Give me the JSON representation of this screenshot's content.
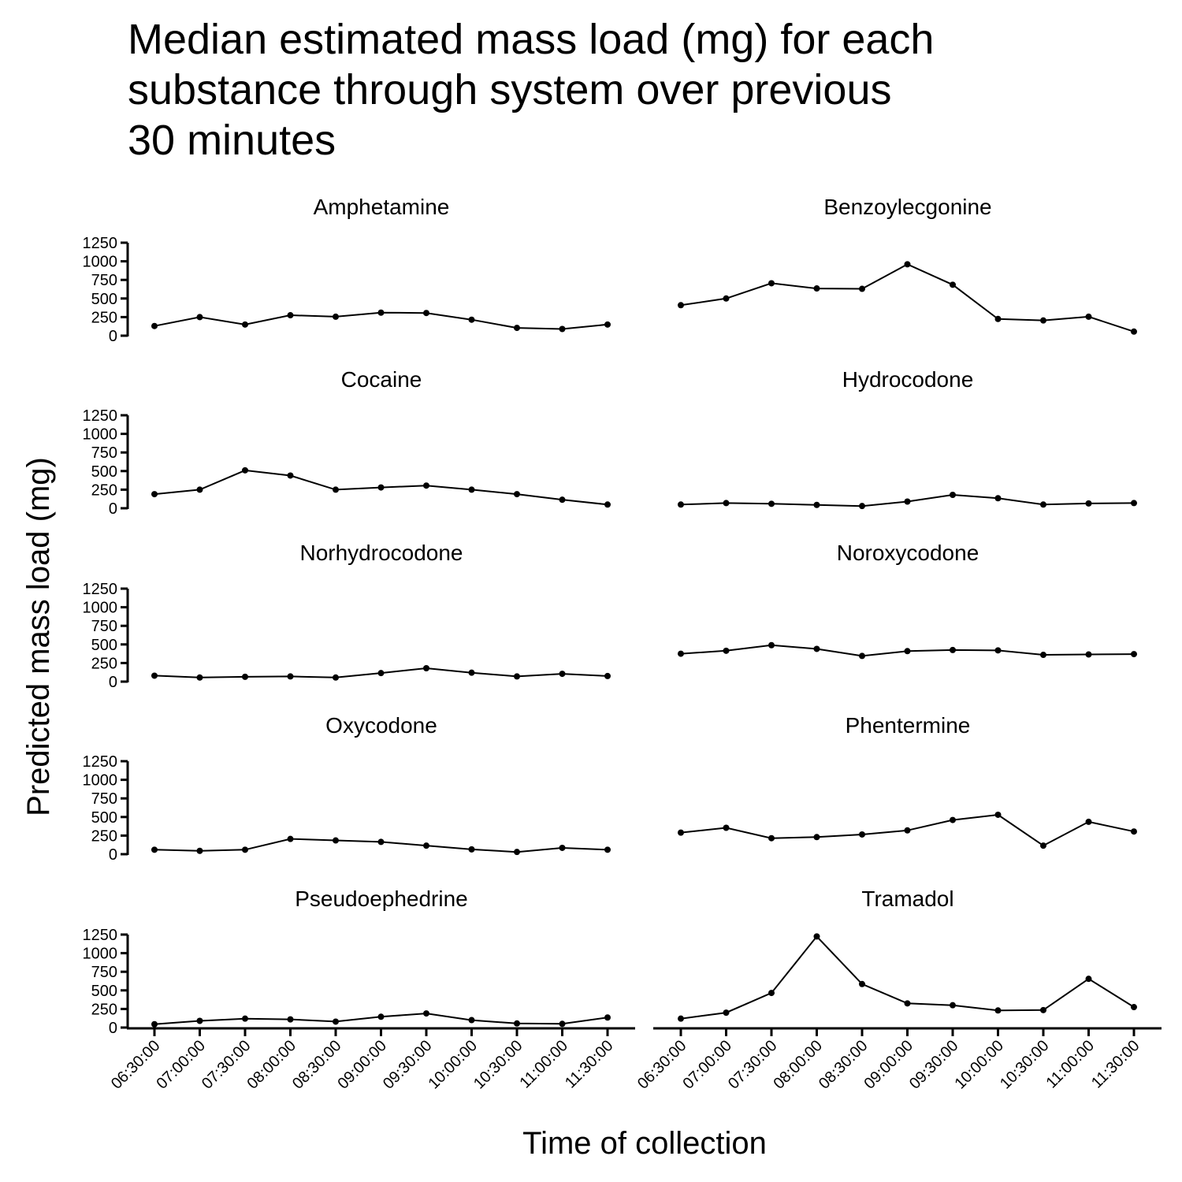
{
  "chart_data": {
    "type": "line",
    "title_lines": [
      "Median estimated mass load (mg) for each",
      "substance through system over previous",
      "30 minutes"
    ],
    "xlabel": "Time of collection",
    "ylabel": "Predicted mass load (mg)",
    "x": [
      "06:30:00",
      "07:00:00",
      "07:30:00",
      "08:00:00",
      "08:30:00",
      "09:00:00",
      "09:30:00",
      "10:00:00",
      "10:30:00",
      "11:00:00",
      "11:30:00"
    ],
    "ylim": [
      0,
      1250
    ],
    "yticks": [
      0,
      250,
      500,
      750,
      1000,
      1250
    ],
    "grid": false,
    "legend": "none",
    "line_color": "#000000",
    "facets": [
      {
        "name": "Amphetamine",
        "values": [
          130,
          250,
          150,
          275,
          255,
          310,
          305,
          215,
          105,
          90,
          150
        ]
      },
      {
        "name": "Benzoylecgonine",
        "values": [
          410,
          500,
          705,
          635,
          630,
          960,
          685,
          225,
          205,
          255,
          55
        ]
      },
      {
        "name": "Cocaine",
        "values": [
          190,
          250,
          510,
          440,
          250,
          280,
          305,
          250,
          190,
          115,
          50
        ]
      },
      {
        "name": "Hydrocodone",
        "values": [
          50,
          70,
          60,
          45,
          30,
          90,
          180,
          135,
          50,
          65,
          70
        ]
      },
      {
        "name": "Norhydrocodone",
        "values": [
          80,
          55,
          65,
          70,
          55,
          115,
          180,
          120,
          70,
          105,
          75
        ]
      },
      {
        "name": "Noroxycodone",
        "values": [
          375,
          415,
          490,
          440,
          345,
          410,
          425,
          420,
          360,
          365,
          370
        ]
      },
      {
        "name": "Oxycodone",
        "values": [
          60,
          45,
          60,
          205,
          185,
          165,
          115,
          65,
          30,
          85,
          60
        ]
      },
      {
        "name": "Phentermine",
        "values": [
          290,
          355,
          215,
          230,
          265,
          320,
          460,
          530,
          115,
          435,
          305
        ]
      },
      {
        "name": "Pseudoephedrine",
        "values": [
          45,
          90,
          120,
          110,
          80,
          145,
          190,
          100,
          55,
          50,
          135
        ]
      },
      {
        "name": "Tramadol",
        "values": [
          120,
          200,
          465,
          1225,
          585,
          325,
          300,
          230,
          235,
          655,
          275
        ]
      }
    ]
  }
}
